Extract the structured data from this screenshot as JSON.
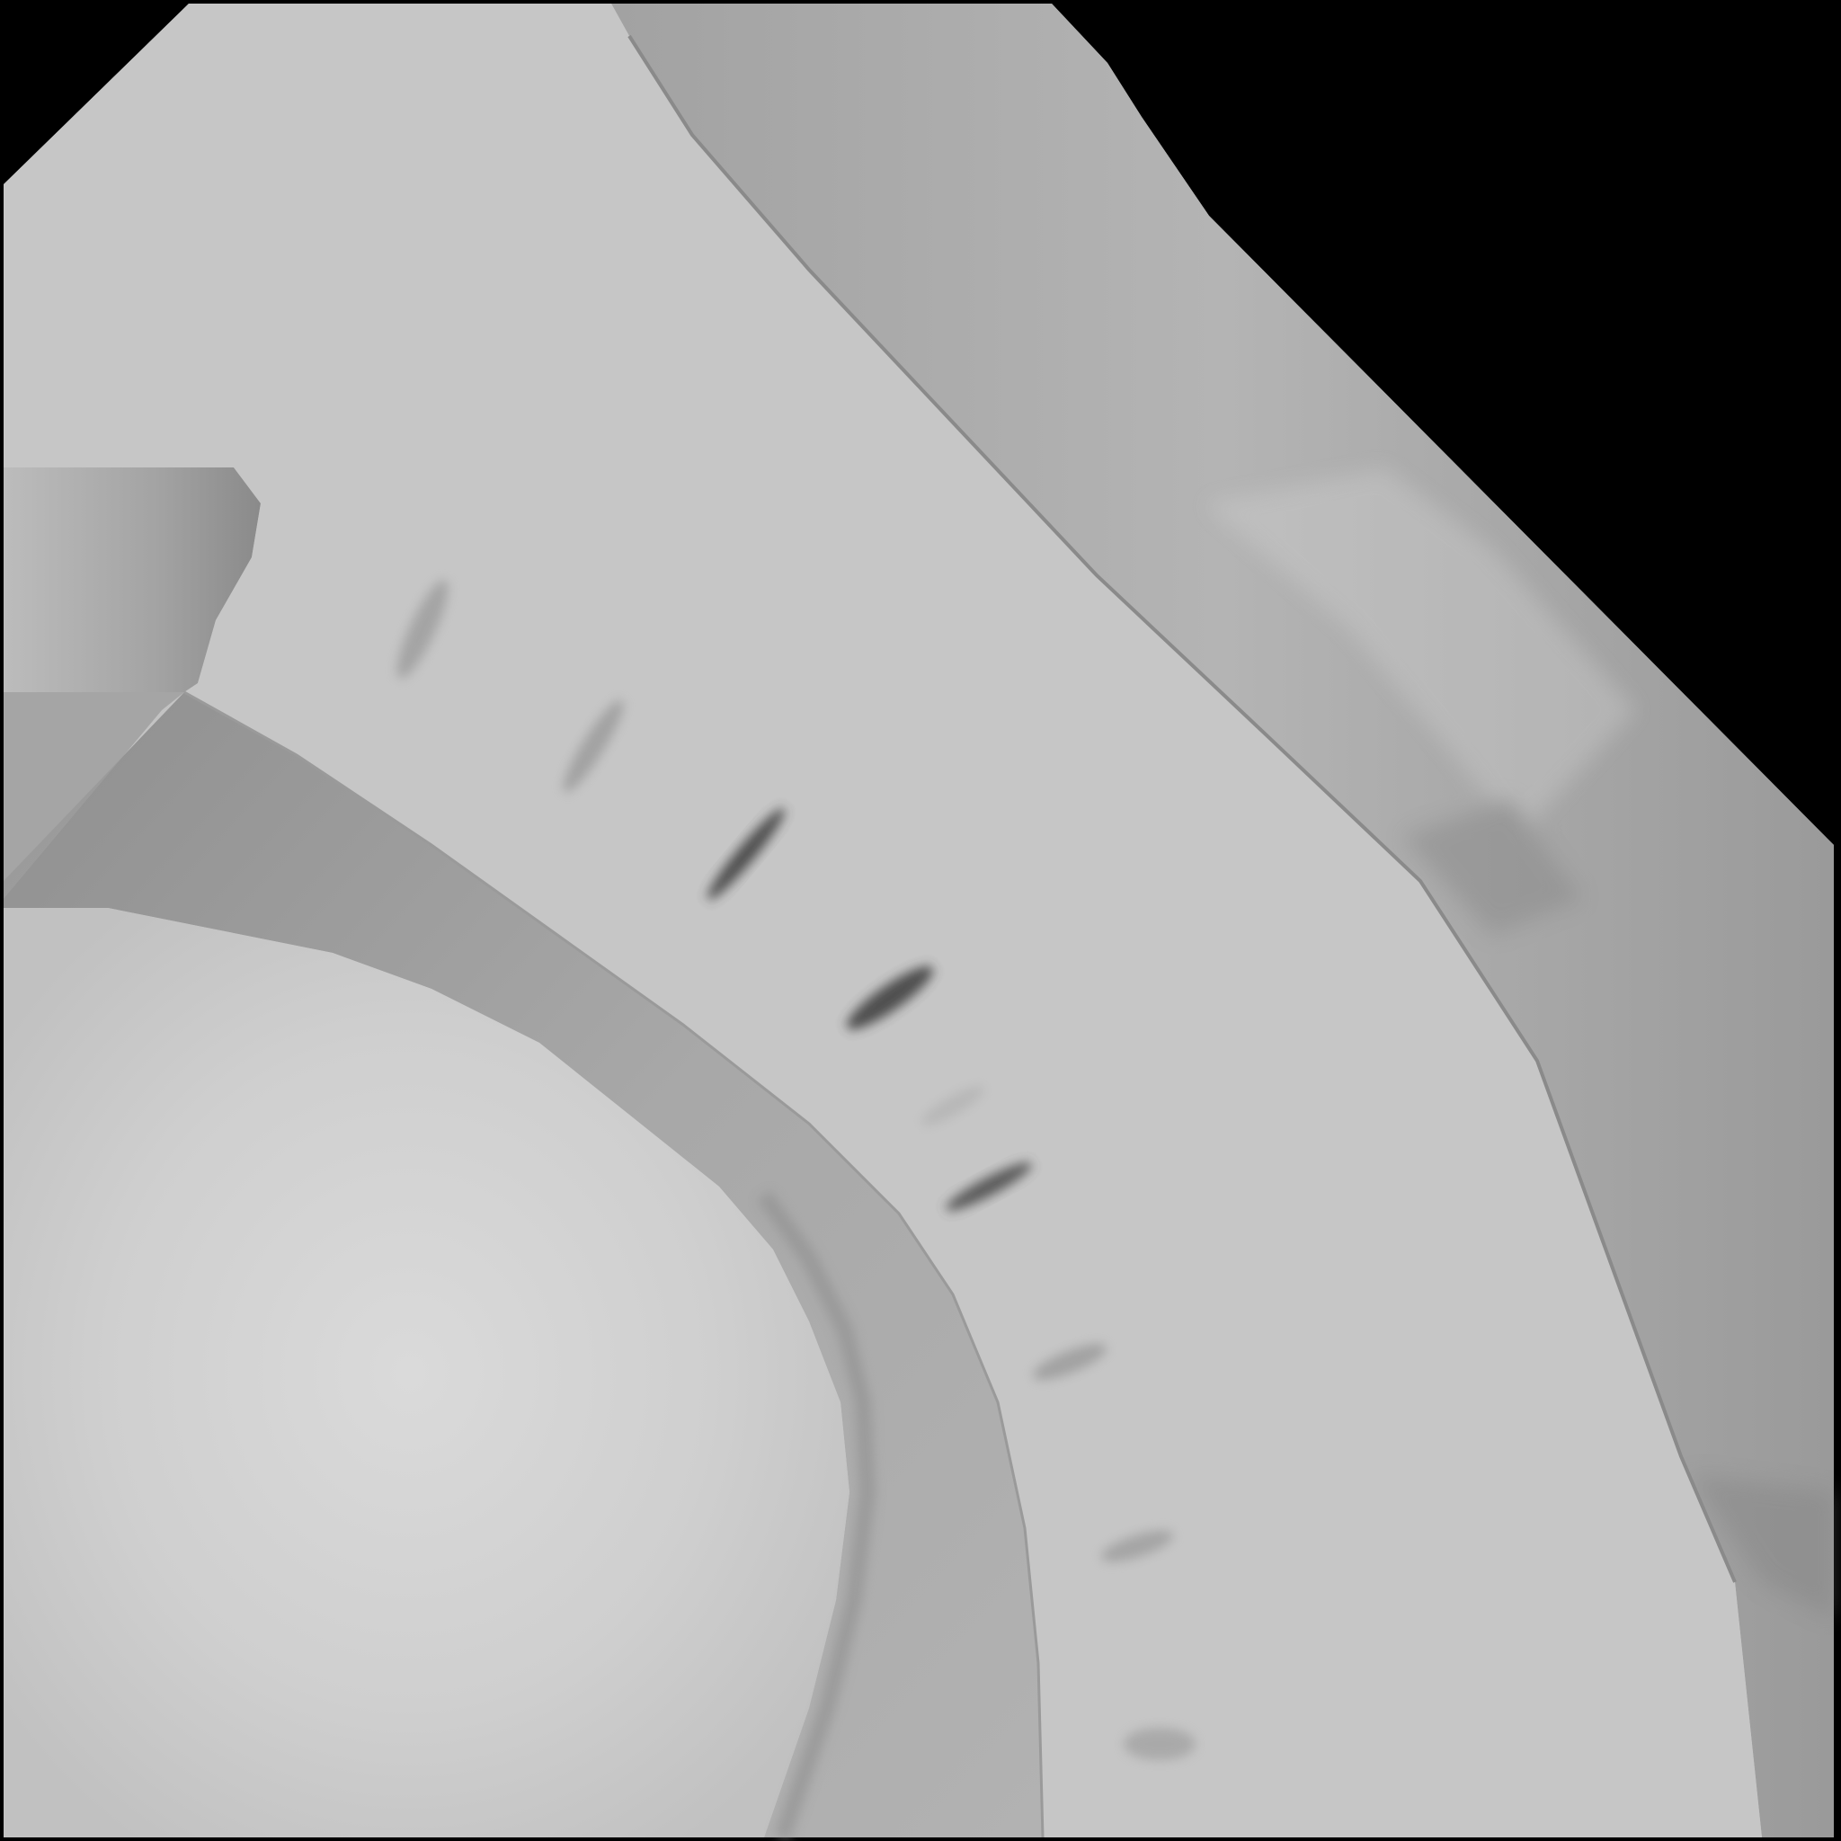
{
  "scene": {
    "colors": {
      "void": "#000000",
      "terrain": "#c3c3c3",
      "road_surface": "#c6c6c6",
      "mound": "#c8c8c8",
      "mound_highlight": "#dadada",
      "shadow": "#9d9d9d",
      "skid_mark": "#3a3a3a"
    },
    "skid_mark_count": 9
  }
}
